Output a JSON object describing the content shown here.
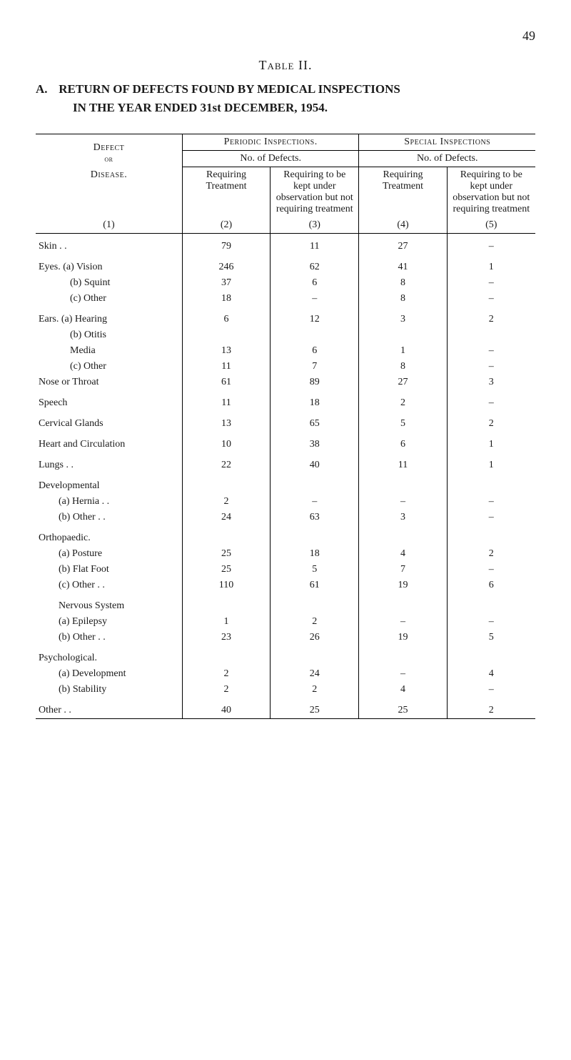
{
  "page_number": "49",
  "table_label": "Table II.",
  "title_prefix": "A.",
  "title_line1": "RETURN OF DEFECTS FOUND BY MEDICAL INSPECTIONS",
  "title_line2": "IN THE YEAR ENDED 31st DECEMBER, 1954.",
  "headers": {
    "periodic": "Periodic Inspections.",
    "special": "Special Inspections",
    "no_defects": "No. of Defects.",
    "defect": "Defect",
    "or": "or",
    "disease": "Disease.",
    "col2": "Requiring Treatment",
    "col3": "Requiring to be kept under observation but not requiring treatment",
    "col4": "Requiring Treatment",
    "col5": "Requiring to be kept under observation but not requiring treatment",
    "n1": "(1)",
    "n2": "(2)",
    "n3": "(3)",
    "n4": "(4)",
    "n5": "(5)"
  },
  "rows": [
    {
      "label": "Skin  . .",
      "c2": "79",
      "c3": "11",
      "c4": "27",
      "c5": "–",
      "gap": true
    },
    {
      "label": "Eyes. (a) Vision",
      "c2": "246",
      "c3": "62",
      "c4": "41",
      "c5": "1",
      "gap": true
    },
    {
      "label": "(b) Squint",
      "indent": 2,
      "c2": "37",
      "c3": "6",
      "c4": "8",
      "c5": "–"
    },
    {
      "label": "(c) Other",
      "indent": 2,
      "c2": "18",
      "c3": "–",
      "c4": "8",
      "c5": "–"
    },
    {
      "label": "Ears. (a) Hearing",
      "c2": "6",
      "c3": "12",
      "c4": "3",
      "c5": "2",
      "gap": true
    },
    {
      "label": "(b) Otitis",
      "indent": 2,
      "c2": "",
      "c3": "",
      "c4": "",
      "c5": ""
    },
    {
      "label": "Media",
      "indent": 3,
      "c2": "13",
      "c3": "6",
      "c4": "1",
      "c5": "–"
    },
    {
      "label": "(c) Other",
      "indent": 2,
      "c2": "11",
      "c3": "7",
      "c4": "8",
      "c5": "–"
    },
    {
      "label": "Nose or Throat",
      "c2": "61",
      "c3": "89",
      "c4": "27",
      "c5": "3"
    },
    {
      "label": "Speech",
      "c2": "11",
      "c3": "18",
      "c4": "2",
      "c5": "–",
      "gap": true
    },
    {
      "label": "Cervical Glands",
      "c2": "13",
      "c3": "65",
      "c4": "5",
      "c5": "2",
      "gap": true
    },
    {
      "label": "Heart and Circulation",
      "c2": "10",
      "c3": "38",
      "c4": "6",
      "c5": "1",
      "gap": true
    },
    {
      "label": "Lungs . .",
      "c2": "22",
      "c3": "40",
      "c4": "11",
      "c5": "1",
      "gap": true
    },
    {
      "label": "Developmental",
      "c2": "",
      "c3": "",
      "c4": "",
      "c5": "",
      "gap": true,
      "header": true
    },
    {
      "label": "(a) Hernia . .",
      "indent": 1,
      "c2": "2",
      "c3": "–",
      "c4": "–",
      "c5": "–"
    },
    {
      "label": "(b) Other  . .",
      "indent": 1,
      "c2": "24",
      "c3": "63",
      "c4": "3",
      "c5": "–"
    },
    {
      "label": "Orthopaedic.",
      "c2": "",
      "c3": "",
      "c4": "",
      "c5": "",
      "gap": true,
      "header": true
    },
    {
      "label": "(a) Posture",
      "indent": 1,
      "c2": "25",
      "c3": "18",
      "c4": "4",
      "c5": "2"
    },
    {
      "label": "(b) Flat Foot",
      "indent": 1,
      "c2": "25",
      "c3": "5",
      "c4": "7",
      "c5": "–"
    },
    {
      "label": "(c) Other  . .",
      "indent": 1,
      "c2": "110",
      "c3": "61",
      "c4": "19",
      "c5": "6"
    },
    {
      "label": "Nervous System",
      "indent": 1,
      "c2": "",
      "c3": "",
      "c4": "",
      "c5": "",
      "gap": true,
      "header": true
    },
    {
      "label": "(a) Epilepsy",
      "indent": 1,
      "c2": "1",
      "c3": "2",
      "c4": "–",
      "c5": "–"
    },
    {
      "label": "(b) Other  . .",
      "indent": 1,
      "c2": "23",
      "c3": "26",
      "c4": "19",
      "c5": "5"
    },
    {
      "label": "Psychological.",
      "c2": "",
      "c3": "",
      "c4": "",
      "c5": "",
      "gap": true,
      "header": true
    },
    {
      "label": "(a) Development",
      "indent": 1,
      "c2": "2",
      "c3": "24",
      "c4": "–",
      "c5": "4"
    },
    {
      "label": "(b) Stability",
      "indent": 1,
      "c2": "2",
      "c3": "2",
      "c4": "4",
      "c5": "–"
    },
    {
      "label": "Other . .",
      "c2": "40",
      "c3": "25",
      "c4": "25",
      "c5": "2",
      "gap": true
    }
  ]
}
